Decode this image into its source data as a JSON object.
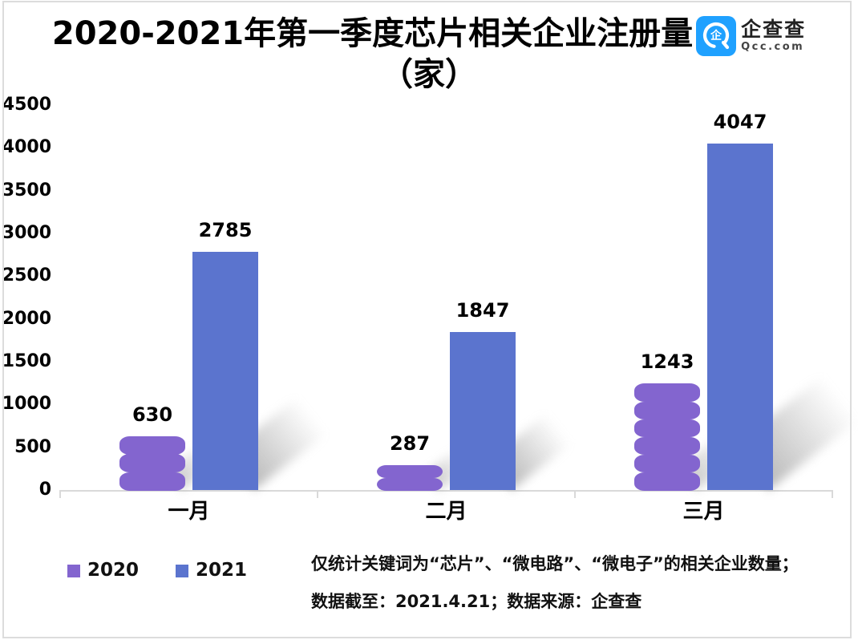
{
  "title": {
    "line1": "2020-2021年第一季度芯片相关企业注册量",
    "line2": "（家）"
  },
  "logo": {
    "name": "企查查",
    "domain": "Qcc.com",
    "color": "#1fa1ff"
  },
  "chart_data": {
    "type": "bar",
    "categories": [
      "一月",
      "二月",
      "三月"
    ],
    "series": [
      {
        "name": "2020",
        "color": "#8365cf",
        "style": "scalloped",
        "values": [
          630,
          287,
          1243
        ]
      },
      {
        "name": "2021",
        "color": "#5b74ce",
        "style": "plain",
        "values": [
          2785,
          1847,
          4047
        ]
      }
    ],
    "ylim": [
      0,
      4500
    ],
    "yticks": [
      0,
      500,
      1000,
      1500,
      2000,
      2500,
      3000,
      3500,
      4000,
      4500
    ],
    "data_labels": true,
    "grid": false,
    "legend_position": "bottom-left",
    "axis_color": "#d9d9d9"
  },
  "footer": {
    "line1": "仅统计关键词为“芯片”、“微电路”、“微电子”的相关企业数量；",
    "line2": "数据截至：2021.4.21；数据来源：企查查"
  }
}
